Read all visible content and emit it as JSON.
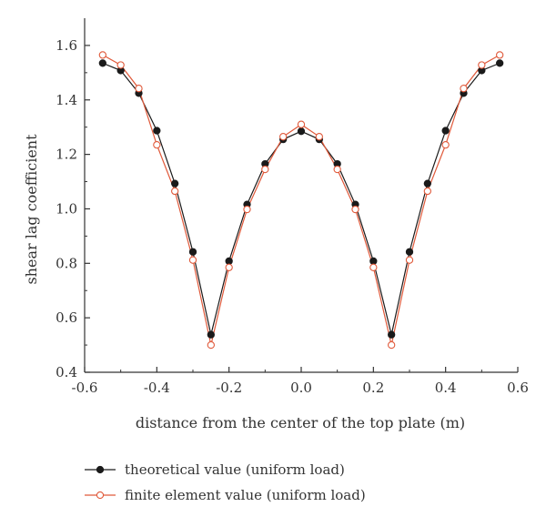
{
  "chart_data": {
    "type": "line",
    "xlabel": "distance from the center of the top plate (m)",
    "ylabel": "shear lag coefficient",
    "xlim": [
      -0.6,
      0.6
    ],
    "ylim": [
      0.4,
      1.7
    ],
    "x_ticks": [
      -0.6,
      -0.4,
      -0.2,
      0.0,
      0.2,
      0.4,
      0.6
    ],
    "x_tick_labels": [
      "-0.6",
      "-0.4",
      "-0.2",
      "0.0",
      "0.2",
      "0.4",
      "0.6"
    ],
    "y_ticks": [
      0.4,
      0.6,
      0.8,
      1.0,
      1.2,
      1.4,
      1.6
    ],
    "y_tick_labels": [
      "0.4",
      "0.6",
      "0.8",
      "1.0",
      "1.2",
      "1.4",
      "1.6"
    ],
    "grid": false,
    "legend_position": "bottom",
    "x": [
      -0.55,
      -0.5,
      -0.45,
      -0.4,
      -0.35,
      -0.3,
      -0.25,
      -0.2,
      -0.15,
      -0.1,
      -0.05,
      0.0,
      0.05,
      0.1,
      0.15,
      0.2,
      0.25,
      0.3,
      0.35,
      0.4,
      0.45,
      0.5,
      0.55
    ],
    "series": [
      {
        "name": "theoretical value (uniform load)",
        "color": "#1a1a1a",
        "marker": "filled-circle",
        "values": [
          1.535,
          1.508,
          1.425,
          1.287,
          1.093,
          0.842,
          0.538,
          0.808,
          1.016,
          1.165,
          1.255,
          1.285,
          1.255,
          1.165,
          1.016,
          0.808,
          0.538,
          0.842,
          1.093,
          1.287,
          1.425,
          1.508,
          1.535
        ]
      },
      {
        "name": "finite element value (uniform load)",
        "color": "#e0593a",
        "marker": "open-circle",
        "values": [
          1.565,
          1.528,
          1.442,
          1.235,
          1.065,
          0.812,
          0.5,
          0.785,
          0.998,
          1.145,
          1.265,
          1.31,
          1.265,
          1.145,
          0.998,
          0.785,
          0.5,
          0.812,
          1.065,
          1.235,
          1.442,
          1.528,
          1.565
        ]
      }
    ]
  }
}
